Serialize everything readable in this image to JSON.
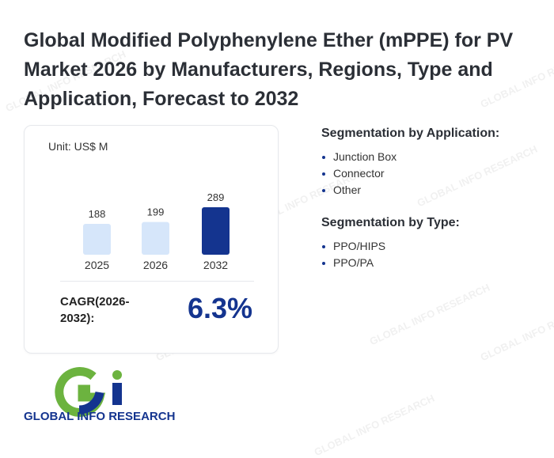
{
  "title": "Global Modified Polyphenylene Ether (mPPE) for PV Market 2026 by Manufacturers, Regions, Type and Application, Forecast to 2032",
  "unit": "Unit: US$ M",
  "cagr": {
    "label": "CAGR(2026-2032):",
    "value": "6.3%"
  },
  "chart_data": {
    "type": "bar",
    "categories": [
      "2025",
      "2026",
      "2032"
    ],
    "values": [
      188,
      199,
      289
    ],
    "title": "",
    "xlabel": "",
    "ylabel": "",
    "bar_colors": [
      "#d6e6fa",
      "#d6e6fa",
      "#14348f"
    ],
    "grid": false
  },
  "segmentation": {
    "application": {
      "title": "Segmentation by Application:",
      "items": [
        "Junction Box",
        "Connector",
        "Other"
      ]
    },
    "type": {
      "title": "Segmentation by Type:",
      "items": [
        "PPO/HIPS",
        "PPO/PA"
      ]
    }
  },
  "brand": {
    "name": "GLOBAL INFO RESEARCH",
    "colors": {
      "green": "#6cb33f",
      "navy": "#14348f"
    }
  }
}
